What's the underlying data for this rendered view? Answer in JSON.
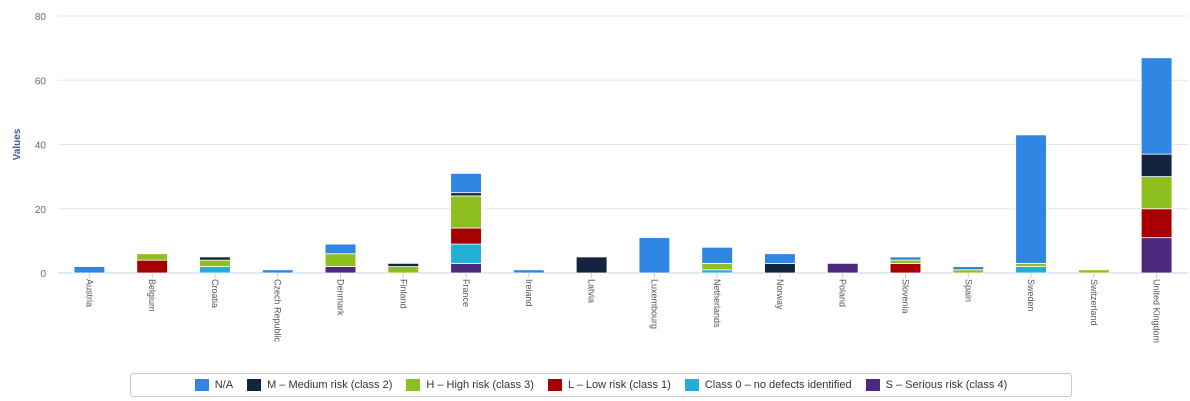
{
  "chart_data": {
    "type": "bar",
    "stacked": true,
    "ylabel": "Values",
    "ylim": [
      0,
      80
    ],
    "yticks": [
      0,
      20,
      40,
      60,
      80
    ],
    "grid": true,
    "legend_position": "bottom",
    "categories": [
      "Austria",
      "Belgium",
      "Croatia",
      "Czech Republic",
      "Denmark",
      "Finland",
      "France",
      "Ireland",
      "Latvia",
      "Luxembourg",
      "Netherlands",
      "Norway",
      "Poland",
      "Slovenia",
      "Spain",
      "Sweden",
      "Switzerland",
      "United Kingdom"
    ],
    "series": [
      {
        "name": "S – Serious risk (class 4)",
        "color": "#4b2a7d",
        "values": [
          0,
          0,
          0,
          0,
          2,
          0,
          3,
          0,
          0,
          0,
          0,
          0,
          3,
          0,
          0,
          0,
          0,
          11
        ]
      },
      {
        "name": "Class 0 – no defects identified",
        "color": "#20b0d6",
        "values": [
          0,
          0,
          2,
          0,
          0,
          0,
          6,
          0,
          0,
          0,
          1,
          0,
          0,
          0,
          0,
          2,
          0,
          0
        ]
      },
      {
        "name": "L – Low risk (class 1)",
        "color": "#a70000",
        "values": [
          0,
          4,
          0,
          0,
          0,
          0,
          5,
          0,
          0,
          0,
          0,
          0,
          0,
          3,
          0,
          0,
          0,
          9
        ]
      },
      {
        "name": "H – High risk (class 3)",
        "color": "#8dbf1f",
        "values": [
          0,
          2,
          2,
          0,
          4,
          2,
          10,
          0,
          0,
          0,
          2,
          0,
          0,
          1,
          1,
          1,
          1,
          10
        ]
      },
      {
        "name": "M – Medium risk (class 2)",
        "color": "#13243f",
        "values": [
          0,
          0,
          1,
          0,
          0,
          1,
          1,
          0,
          5,
          0,
          0,
          3,
          0,
          0,
          0,
          0,
          0,
          7
        ]
      },
      {
        "name": "N/A",
        "color": "#2f86e3",
        "values": [
          2,
          0,
          0,
          1,
          3,
          0,
          6,
          1,
          0,
          11,
          5,
          3,
          0,
          1,
          1,
          40,
          0,
          30
        ]
      }
    ],
    "legend_order": [
      "N/A",
      "M – Medium risk (class 2)",
      "H – High risk (class 3)",
      "L – Low risk (class 1)",
      "Class 0 – no defects identified",
      "S – Serious risk (class 4)"
    ]
  }
}
